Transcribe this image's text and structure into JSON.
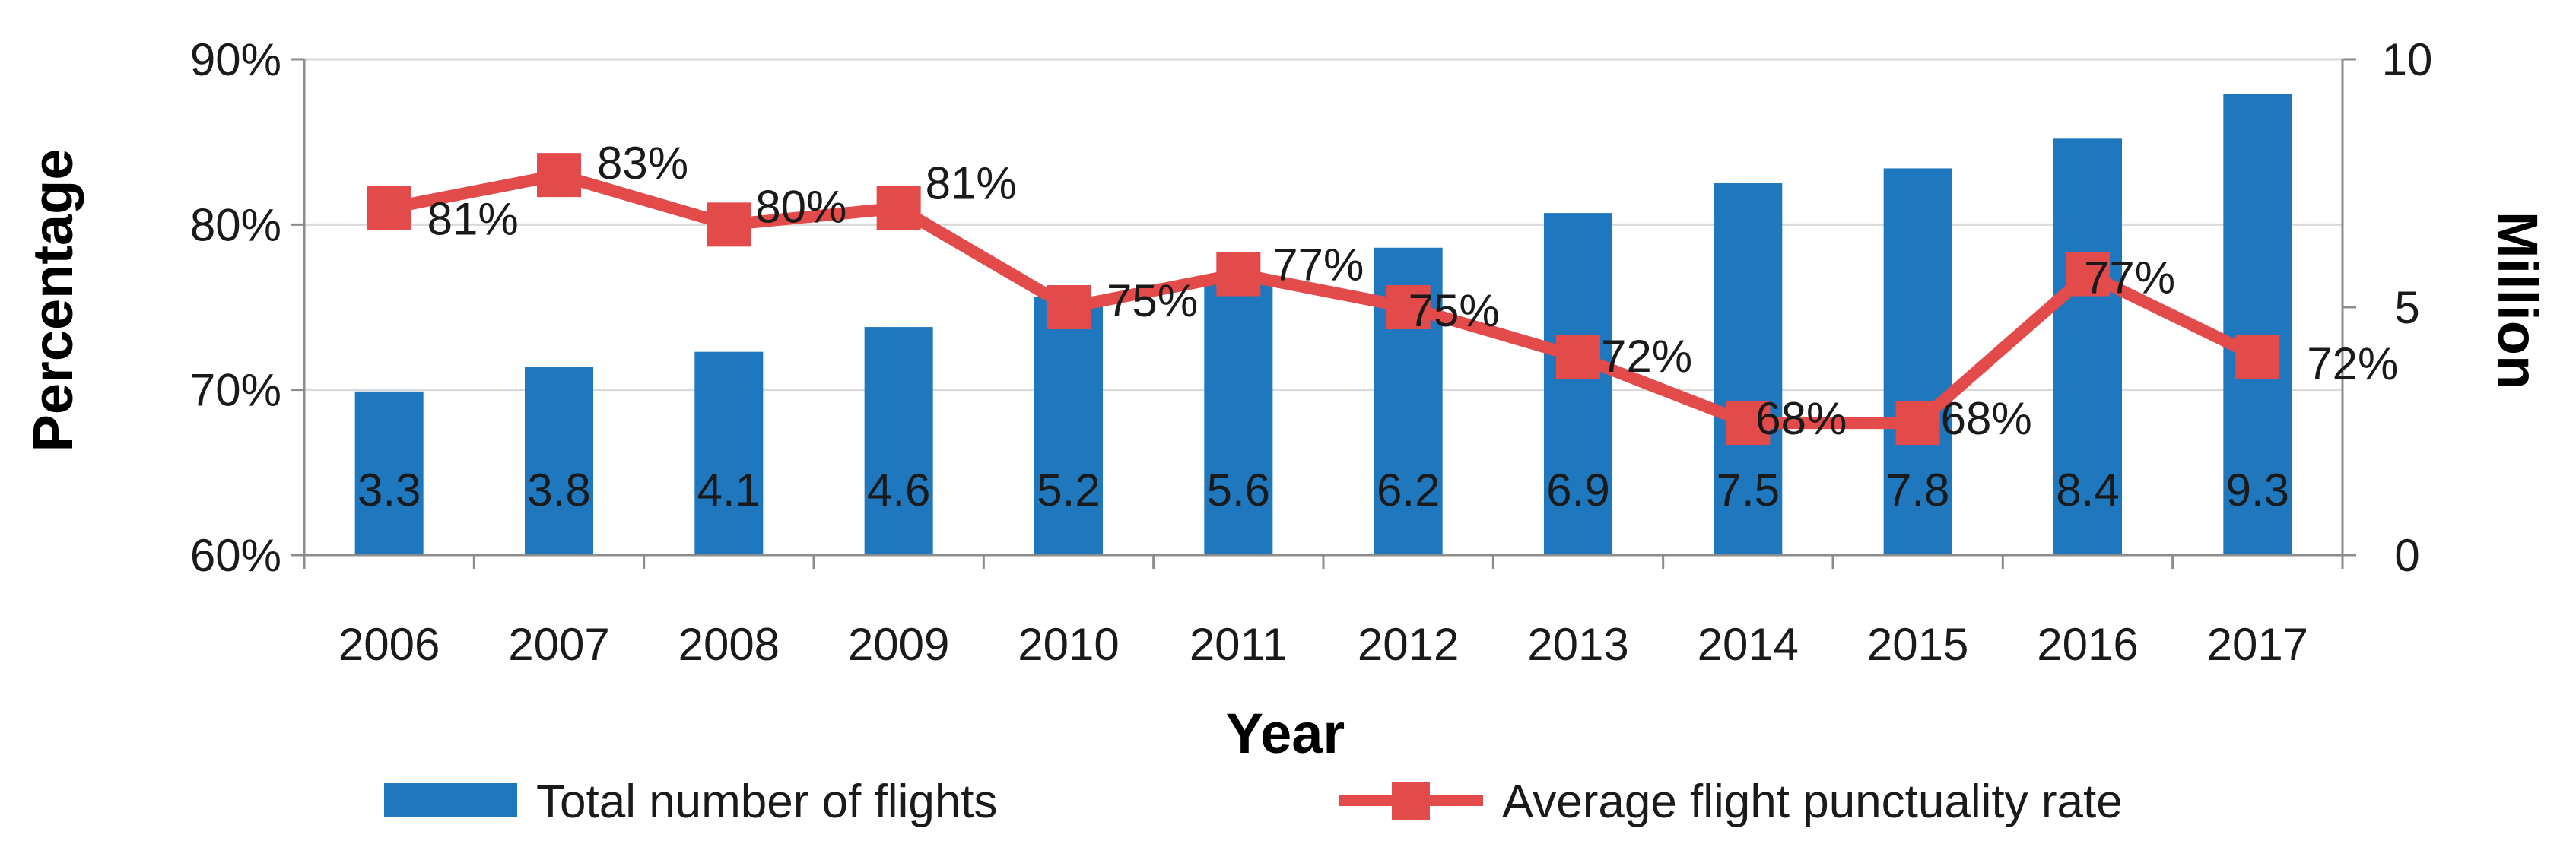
{
  "chart_data": {
    "type": "bar",
    "categories": [
      "2006",
      "2007",
      "2008",
      "2009",
      "2010",
      "2011",
      "2012",
      "2013",
      "2014",
      "2015",
      "2016",
      "2017"
    ],
    "series": [
      {
        "name": "Total number of flights",
        "type": "bar",
        "axis": "right",
        "values": [
          3.3,
          3.8,
          4.1,
          4.6,
          5.2,
          5.6,
          6.2,
          6.9,
          7.5,
          7.8,
          8.4,
          9.3
        ],
        "labels": [
          "3.3",
          "3.8",
          "4.1",
          "4.6",
          "5.2",
          "5.6",
          "6.2",
          "6.9",
          "7.5",
          "7.8",
          "8.4",
          "9.3"
        ]
      },
      {
        "name": "Average flight punctuality rate",
        "type": "line",
        "axis": "left",
        "values": [
          81,
          83,
          80,
          81,
          75,
          77,
          75,
          72,
          68,
          68,
          77,
          72
        ],
        "labels": [
          "81%",
          "83%",
          "80%",
          "81%",
          "75%",
          "77%",
          "75%",
          "72%",
          "68%",
          "68%",
          "77%",
          "72%"
        ]
      }
    ],
    "xlabel": "Year",
    "ylabel": "Percentage",
    "y2label": "Million",
    "ylim": [
      60,
      90
    ],
    "y2lim": [
      0,
      10
    ],
    "yticks": [
      "60%",
      "70%",
      "80%",
      "90%"
    ],
    "y2ticks": [
      "0",
      "5",
      "10"
    ],
    "grid": true,
    "legend": "bottom",
    "colors": {
      "bar": "#1f77be",
      "line": "#e34a4a"
    }
  }
}
